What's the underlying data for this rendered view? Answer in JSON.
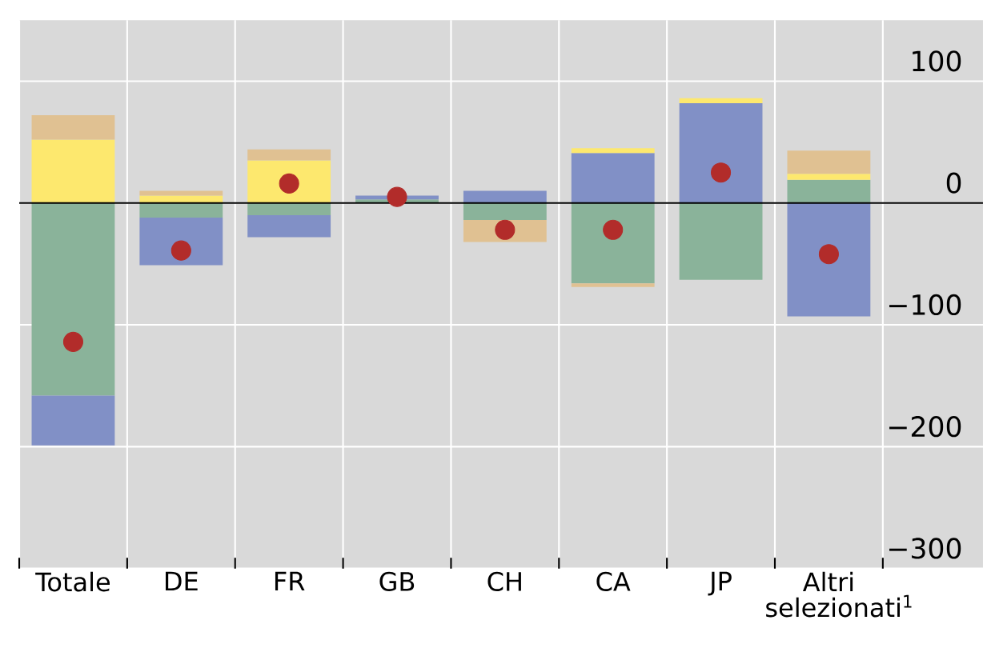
{
  "chart_data": {
    "type": "bar",
    "stacked": true,
    "categories": [
      "Totale",
      "DE",
      "FR",
      "GB",
      "CH",
      "CA",
      "JP",
      "Altri selezionati$^{1}$"
    ],
    "series": [
      {
        "color": "#8ab39a",
        "values": [
          -158,
          -12,
          -10,
          3,
          -14,
          -66,
          -63,
          19
        ]
      },
      {
        "color": "#8190c6",
        "values": [
          -41,
          -39,
          -18,
          3,
          10,
          41,
          82,
          -93
        ]
      },
      {
        "color": "#fde86e",
        "values": [
          52,
          6,
          35,
          null,
          null,
          4,
          4,
          5
        ]
      },
      {
        "color": "#e0c192",
        "values": [
          20,
          4,
          9,
          null,
          -18,
          -3,
          null,
          19
        ]
      },
      {
        "type": "scatter",
        "color": "#b22c2a",
        "marker": "circle",
        "values": [
          -114,
          -39,
          16,
          5,
          -22,
          -22,
          25,
          -42
        ]
      }
    ],
    "ylim": [
      -300,
      150
    ],
    "yticks": [
      {
        "value": -300,
        "label": "−300"
      },
      {
        "value": -200,
        "label": "−200"
      },
      {
        "value": -100,
        "label": "−100"
      },
      0,
      100
    ],
    "grid": true,
    "ref_lines": [
      {
        "axis": "y",
        "value": 0
      }
    ]
  }
}
